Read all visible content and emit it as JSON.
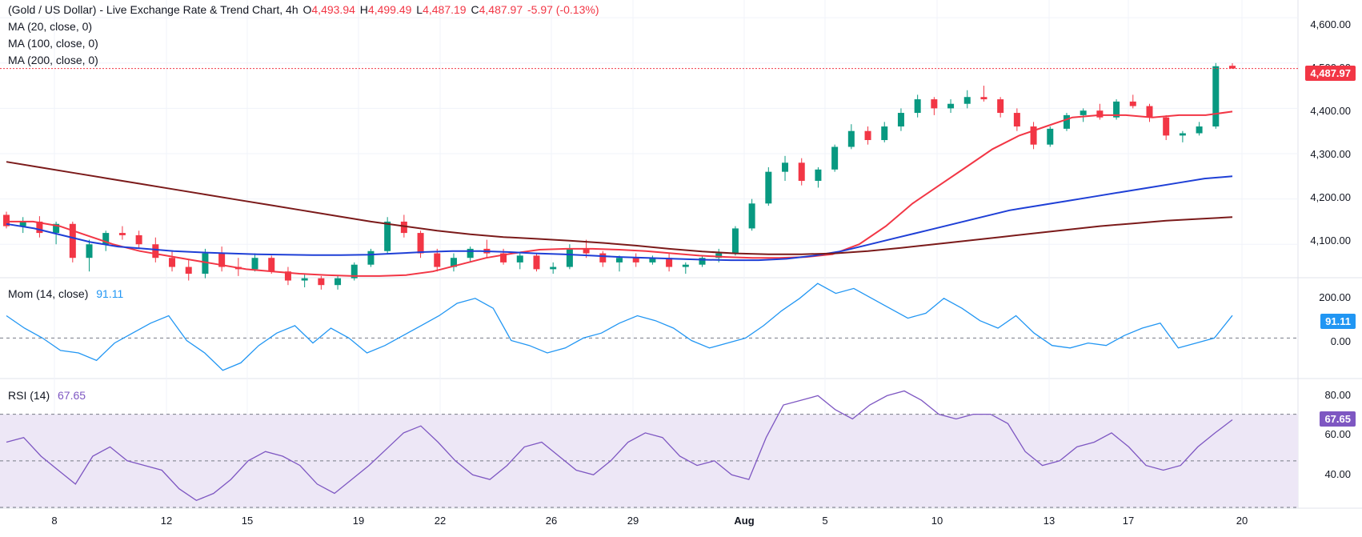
{
  "colors": {
    "up": "#089981",
    "down": "#f23645",
    "ma20": "#f23645",
    "ma100": "#1e3fd6",
    "ma200": "#7b1a1a",
    "momentum": "#2196f3",
    "rsi": "#7e57c2",
    "rsi_band": "#ede7f6",
    "grid": "#f0f3fa",
    "separator": "#e0e3eb"
  },
  "header": {
    "title": "(Gold / US Dollar) - Live Exchange Rate & Trend Chart, 4h",
    "o_label": "O",
    "o_value": "4,493.94",
    "h_label": "H",
    "h_value": "4,499.49",
    "l_label": "L",
    "l_value": "4,487.19",
    "c_label": "C",
    "c_value": "4,487.97",
    "change": "-5.97 (-0.13%)",
    "ma20": "MA (20, close, 0)",
    "ma100": "MA (100, close, 0)",
    "ma200": "MA (200, close, 0)"
  },
  "panes": {
    "mom_label": "Mom (14, close)",
    "mom_value": "91.11",
    "rsi_label": "RSI (14)",
    "rsi_value": "67.65"
  },
  "price_axis": [
    "4,600.00",
    "4,500.00",
    "4,400.00",
    "4,300.00",
    "4,200.00",
    "4,100.00"
  ],
  "mom_axis": [
    "200.00",
    "0.00"
  ],
  "rsi_axis": [
    "80.00",
    "60.00",
    "40.00"
  ],
  "x_axis": [
    "8",
    "12",
    "15",
    "19",
    "22",
    "26",
    "29",
    "Aug",
    "5",
    "10",
    "13",
    "17",
    "20"
  ],
  "last_price_badge": "4,487.97",
  "chart_data": [
    {
      "type": "candlestick",
      "series": "Gold / US Dollar, 4h",
      "ylim": [
        4028,
        4625
      ],
      "ohlc_approx": [
        [
          4165,
          4172,
          4135,
          4140
        ],
        [
          4140,
          4160,
          4125,
          4150
        ],
        [
          4150,
          4162,
          4115,
          4125
        ],
        [
          4125,
          4150,
          4100,
          4145
        ],
        [
          4145,
          4150,
          4060,
          4070
        ],
        [
          4070,
          4110,
          4040,
          4100
        ],
        [
          4100,
          4130,
          4085,
          4125
        ],
        [
          4125,
          4140,
          4110,
          4120
        ],
        [
          4120,
          4130,
          4090,
          4100
        ],
        [
          4100,
          4115,
          4060,
          4070
        ],
        [
          4070,
          4085,
          4040,
          4050
        ],
        [
          4050,
          4065,
          4020,
          4035
        ],
        [
          4035,
          4090,
          4025,
          4080
        ],
        [
          4080,
          4095,
          4040,
          4050
        ],
        [
          4050,
          4070,
          4030,
          4045
        ],
        [
          4045,
          4080,
          4040,
          4070
        ],
        [
          4070,
          4075,
          4035,
          4040
        ],
        [
          4040,
          4050,
          4010,
          4020
        ],
        [
          4020,
          4035,
          4005,
          4025
        ],
        [
          4025,
          4030,
          4000,
          4010
        ],
        [
          4010,
          4030,
          4000,
          4025
        ],
        [
          4025,
          4060,
          4020,
          4055
        ],
        [
          4055,
          4090,
          4050,
          4085
        ],
        [
          4085,
          4160,
          4080,
          4150
        ],
        [
          4150,
          4165,
          4115,
          4125
        ],
        [
          4125,
          4130,
          4070,
          4080
        ],
        [
          4080,
          4090,
          4040,
          4050
        ],
        [
          4050,
          4080,
          4040,
          4070
        ],
        [
          4070,
          4095,
          4060,
          4090
        ],
        [
          4090,
          4110,
          4070,
          4080
        ],
        [
          4080,
          4090,
          4055,
          4060
        ],
        [
          4060,
          4080,
          4045,
          4075
        ],
        [
          4075,
          4080,
          4040,
          4045
        ],
        [
          4045,
          4060,
          4035,
          4050
        ],
        [
          4050,
          4100,
          4045,
          4090
        ],
        [
          4090,
          4110,
          4070,
          4080
        ],
        [
          4080,
          4085,
          4050,
          4060
        ],
        [
          4060,
          4075,
          4040,
          4070
        ],
        [
          4070,
          4080,
          4050,
          4060
        ],
        [
          4060,
          4075,
          4055,
          4070
        ],
        [
          4070,
          4080,
          4040,
          4050
        ],
        [
          4050,
          4060,
          4035,
          4055
        ],
        [
          4055,
          4075,
          4050,
          4070
        ],
        [
          4070,
          4090,
          4060,
          4080
        ],
        [
          4080,
          4140,
          4075,
          4135
        ],
        [
          4135,
          4200,
          4130,
          4190
        ],
        [
          4190,
          4270,
          4185,
          4260
        ],
        [
          4260,
          4295,
          4240,
          4280
        ],
        [
          4280,
          4290,
          4230,
          4240
        ],
        [
          4240,
          4270,
          4225,
          4265
        ],
        [
          4265,
          4320,
          4260,
          4315
        ],
        [
          4315,
          4365,
          4310,
          4350
        ],
        [
          4350,
          4360,
          4320,
          4330
        ],
        [
          4330,
          4370,
          4325,
          4360
        ],
        [
          4360,
          4400,
          4350,
          4390
        ],
        [
          4390,
          4430,
          4380,
          4420
        ],
        [
          4420,
          4425,
          4385,
          4400
        ],
        [
          4400,
          4420,
          4390,
          4410
        ],
        [
          4410,
          4440,
          4400,
          4425
        ],
        [
          4425,
          4450,
          4415,
          4420
        ],
        [
          4420,
          4425,
          4380,
          4390
        ],
        [
          4390,
          4400,
          4350,
          4360
        ],
        [
          4360,
          4370,
          4310,
          4320
        ],
        [
          4320,
          4360,
          4315,
          4355
        ],
        [
          4355,
          4390,
          4350,
          4385
        ],
        [
          4385,
          4400,
          4370,
          4395
        ],
        [
          4395,
          4410,
          4375,
          4380
        ],
        [
          4380,
          4420,
          4375,
          4415
        ],
        [
          4415,
          4430,
          4400,
          4405
        ],
        [
          4405,
          4410,
          4370,
          4380
        ],
        [
          4380,
          4385,
          4330,
          4340
        ],
        [
          4340,
          4350,
          4325,
          4345
        ],
        [
          4345,
          4370,
          4340,
          4360
        ],
        [
          4360,
          4500,
          4355,
          4493
        ],
        [
          4493.94,
          4499.49,
          4487.19,
          4487.97
        ]
      ],
      "last": {
        "open": 4493.94,
        "high": 4499.49,
        "low": 4487.19,
        "close": 4487.97,
        "change": -5.97,
        "change_pct": -0.13
      }
    },
    {
      "type": "line",
      "series": [
        {
          "name": "MA (20, close, 0)",
          "values_approx": [
            4150,
            4150,
            4140,
            4120,
            4100,
            4085,
            4075,
            4065,
            4055,
            4045,
            4040,
            4035,
            4032,
            4030,
            4030,
            4032,
            4040,
            4055,
            4070,
            4080,
            4088,
            4090,
            4090,
            4088,
            4085,
            4080,
            4075,
            4072,
            4070,
            4070,
            4072,
            4078,
            4100,
            4140,
            4190,
            4230,
            4270,
            4310,
            4340,
            4360,
            4380,
            4385,
            4385,
            4380,
            4385,
            4385,
            4393
          ]
        },
        {
          "name": "MA (100, close, 0)",
          "values_approx": [
            4145,
            4135,
            4120,
            4105,
            4095,
            4090,
            4085,
            4082,
            4080,
            4078,
            4077,
            4076,
            4076,
            4077,
            4080,
            4083,
            4085,
            4085,
            4083,
            4080,
            4078,
            4075,
            4072,
            4070,
            4068,
            4066,
            4065,
            4065,
            4068,
            4075,
            4085,
            4100,
            4115,
            4130,
            4145,
            4160,
            4175,
            4185,
            4195,
            4205,
            4215,
            4225,
            4235,
            4245,
            4250
          ]
        },
        {
          "name": "MA (200, close, 0)",
          "values_approx": [
            4282,
            4270,
            4258,
            4246,
            4234,
            4222,
            4210,
            4198,
            4186,
            4174,
            4162,
            4150,
            4140,
            4130,
            4122,
            4116,
            4112,
            4108,
            4103,
            4097,
            4090,
            4084,
            4080,
            4078,
            4078,
            4080,
            4085,
            4092,
            4100,
            4108,
            4116,
            4124,
            4132,
            4140,
            4146,
            4152,
            4156,
            4160
          ]
        }
      ]
    },
    {
      "type": "line",
      "series": [
        {
          "name": "Mom (14, close)",
          "values_approx": [
            90,
            40,
            0,
            -50,
            -60,
            -90,
            -20,
            20,
            60,
            90,
            -10,
            -60,
            -130,
            -100,
            -30,
            20,
            50,
            -20,
            40,
            0,
            -60,
            -30,
            10,
            50,
            90,
            140,
            160,
            120,
            -10,
            -30,
            -60,
            -40,
            0,
            20,
            60,
            90,
            70,
            40,
            -10,
            -40,
            -20,
            0,
            50,
            110,
            160,
            220,
            180,
            200,
            160,
            120,
            80,
            100,
            160,
            120,
            70,
            40,
            90,
            20,
            -30,
            -40,
            -20,
            -30,
            10,
            40,
            60,
            -40,
            -20,
            0,
            91.11
          ]
        }
      ],
      "ylim": [
        -160,
        240
      ]
    },
    {
      "type": "line",
      "series": [
        {
          "name": "RSI (14)",
          "values_approx": [
            58,
            60,
            52,
            46,
            40,
            52,
            56,
            50,
            48,
            46,
            38,
            33,
            36,
            42,
            50,
            54,
            52,
            48,
            40,
            36,
            42,
            48,
            55,
            62,
            65,
            58,
            50,
            44,
            42,
            48,
            56,
            58,
            52,
            46,
            44,
            50,
            58,
            62,
            60,
            52,
            48,
            50,
            44,
            42,
            60,
            74,
            76,
            78,
            72,
            68,
            74,
            78,
            80,
            76,
            70,
            68,
            70,
            70,
            66,
            54,
            48,
            50,
            56,
            58,
            62,
            56,
            48,
            46,
            48,
            56,
            62,
            67.65
          ]
        }
      ],
      "ylim": [
        30,
        85
      ],
      "levels": [
        70,
        50,
        30
      ]
    }
  ]
}
